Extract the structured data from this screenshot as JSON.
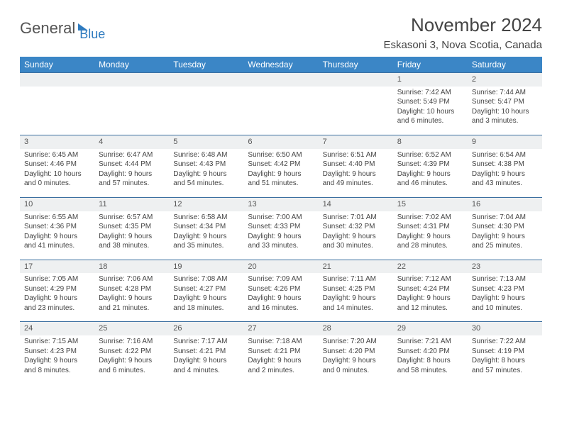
{
  "logo": {
    "general": "General",
    "blue": "Blue"
  },
  "title": "November 2024",
  "location": "Eskasoni 3, Nova Scotia, Canada",
  "colors": {
    "header_bg": "#3b86c6",
    "header_text": "#ffffff",
    "daynum_bg": "#eef0f1",
    "border": "#3b6fa0",
    "logo_blue": "#2f7bbf"
  },
  "days_of_week": [
    "Sunday",
    "Monday",
    "Tuesday",
    "Wednesday",
    "Thursday",
    "Friday",
    "Saturday"
  ],
  "weeks": [
    [
      null,
      null,
      null,
      null,
      null,
      {
        "n": "1",
        "sr": "7:42 AM",
        "ss": "5:49 PM",
        "dl": "10 hours and 6 minutes."
      },
      {
        "n": "2",
        "sr": "7:44 AM",
        "ss": "5:47 PM",
        "dl": "10 hours and 3 minutes."
      }
    ],
    [
      {
        "n": "3",
        "sr": "6:45 AM",
        "ss": "4:46 PM",
        "dl": "10 hours and 0 minutes."
      },
      {
        "n": "4",
        "sr": "6:47 AM",
        "ss": "4:44 PM",
        "dl": "9 hours and 57 minutes."
      },
      {
        "n": "5",
        "sr": "6:48 AM",
        "ss": "4:43 PM",
        "dl": "9 hours and 54 minutes."
      },
      {
        "n": "6",
        "sr": "6:50 AM",
        "ss": "4:42 PM",
        "dl": "9 hours and 51 minutes."
      },
      {
        "n": "7",
        "sr": "6:51 AM",
        "ss": "4:40 PM",
        "dl": "9 hours and 49 minutes."
      },
      {
        "n": "8",
        "sr": "6:52 AM",
        "ss": "4:39 PM",
        "dl": "9 hours and 46 minutes."
      },
      {
        "n": "9",
        "sr": "6:54 AM",
        "ss": "4:38 PM",
        "dl": "9 hours and 43 minutes."
      }
    ],
    [
      {
        "n": "10",
        "sr": "6:55 AM",
        "ss": "4:36 PM",
        "dl": "9 hours and 41 minutes."
      },
      {
        "n": "11",
        "sr": "6:57 AM",
        "ss": "4:35 PM",
        "dl": "9 hours and 38 minutes."
      },
      {
        "n": "12",
        "sr": "6:58 AM",
        "ss": "4:34 PM",
        "dl": "9 hours and 35 minutes."
      },
      {
        "n": "13",
        "sr": "7:00 AM",
        "ss": "4:33 PM",
        "dl": "9 hours and 33 minutes."
      },
      {
        "n": "14",
        "sr": "7:01 AM",
        "ss": "4:32 PM",
        "dl": "9 hours and 30 minutes."
      },
      {
        "n": "15",
        "sr": "7:02 AM",
        "ss": "4:31 PM",
        "dl": "9 hours and 28 minutes."
      },
      {
        "n": "16",
        "sr": "7:04 AM",
        "ss": "4:30 PM",
        "dl": "9 hours and 25 minutes."
      }
    ],
    [
      {
        "n": "17",
        "sr": "7:05 AM",
        "ss": "4:29 PM",
        "dl": "9 hours and 23 minutes."
      },
      {
        "n": "18",
        "sr": "7:06 AM",
        "ss": "4:28 PM",
        "dl": "9 hours and 21 minutes."
      },
      {
        "n": "19",
        "sr": "7:08 AM",
        "ss": "4:27 PM",
        "dl": "9 hours and 18 minutes."
      },
      {
        "n": "20",
        "sr": "7:09 AM",
        "ss": "4:26 PM",
        "dl": "9 hours and 16 minutes."
      },
      {
        "n": "21",
        "sr": "7:11 AM",
        "ss": "4:25 PM",
        "dl": "9 hours and 14 minutes."
      },
      {
        "n": "22",
        "sr": "7:12 AM",
        "ss": "4:24 PM",
        "dl": "9 hours and 12 minutes."
      },
      {
        "n": "23",
        "sr": "7:13 AM",
        "ss": "4:23 PM",
        "dl": "9 hours and 10 minutes."
      }
    ],
    [
      {
        "n": "24",
        "sr": "7:15 AM",
        "ss": "4:23 PM",
        "dl": "9 hours and 8 minutes."
      },
      {
        "n": "25",
        "sr": "7:16 AM",
        "ss": "4:22 PM",
        "dl": "9 hours and 6 minutes."
      },
      {
        "n": "26",
        "sr": "7:17 AM",
        "ss": "4:21 PM",
        "dl": "9 hours and 4 minutes."
      },
      {
        "n": "27",
        "sr": "7:18 AM",
        "ss": "4:21 PM",
        "dl": "9 hours and 2 minutes."
      },
      {
        "n": "28",
        "sr": "7:20 AM",
        "ss": "4:20 PM",
        "dl": "9 hours and 0 minutes."
      },
      {
        "n": "29",
        "sr": "7:21 AM",
        "ss": "4:20 PM",
        "dl": "8 hours and 58 minutes."
      },
      {
        "n": "30",
        "sr": "7:22 AM",
        "ss": "4:19 PM",
        "dl": "8 hours and 57 minutes."
      }
    ]
  ],
  "labels": {
    "sunrise": "Sunrise: ",
    "sunset": "Sunset: ",
    "daylight": "Daylight: "
  }
}
